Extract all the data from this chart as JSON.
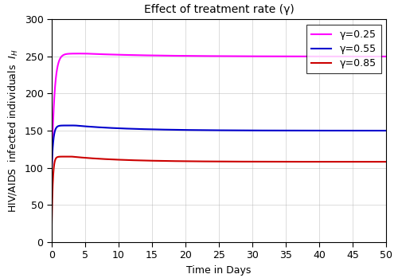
{
  "title": "Effect of treatment rate (γ)",
  "xlabel": "Time in Days",
  "ylabel": "HIV/AIDS  infected individuals  ᴵₕ",
  "xlim": [
    0,
    50
  ],
  "ylim": [
    0,
    300
  ],
  "xticks": [
    0,
    5,
    10,
    15,
    20,
    25,
    30,
    35,
    40,
    45,
    50
  ],
  "yticks": [
    0,
    50,
    100,
    150,
    200,
    250,
    300
  ],
  "curves": [
    {
      "gamma": 0.25,
      "color": "#FF00FF",
      "label": "γ=0.25",
      "y0": 100,
      "peak": 254,
      "peak_t": 5.0,
      "steady": 250,
      "rise_rate": 2.5,
      "decay_rate": 0.1
    },
    {
      "gamma": 0.55,
      "color": "#0000CD",
      "label": "γ=0.55",
      "y0": 100,
      "peak": 157,
      "peak_t": 3.5,
      "steady": 150,
      "rise_rate": 3.0,
      "decay_rate": 0.12
    },
    {
      "gamma": 0.85,
      "color": "#CC0000",
      "label": "γ=0.85",
      "y0": 25,
      "peak": 115,
      "peak_t": 3.0,
      "steady": 108,
      "rise_rate": 3.5,
      "decay_rate": 0.13
    }
  ],
  "legend_loc": "upper right",
  "linewidth": 1.5,
  "figsize": [
    5.0,
    3.49
  ],
  "dpi": 100,
  "bg_color": "#FFFFFF",
  "grid_color": "#AAAAAA",
  "title_fontsize": 10,
  "label_fontsize": 9,
  "tick_fontsize": 9,
  "legend_fontsize": 9
}
